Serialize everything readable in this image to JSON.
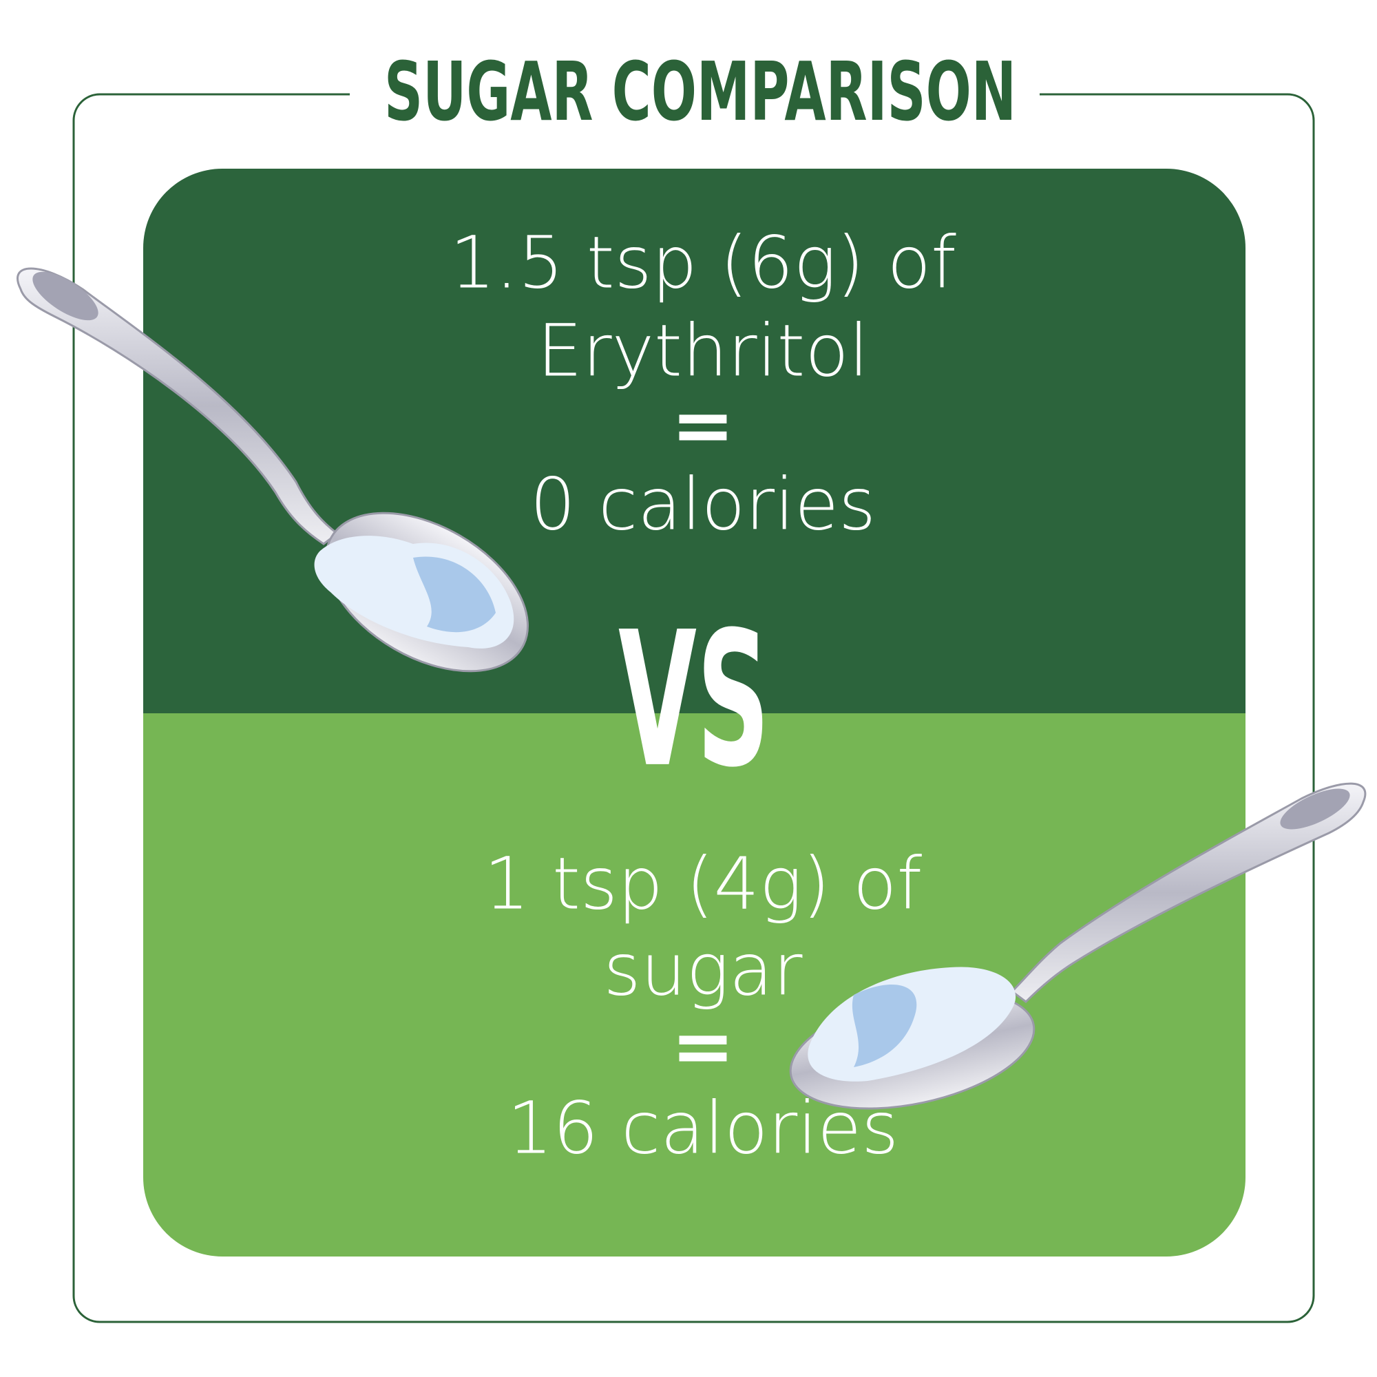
{
  "title": "SUGAR COMPARISON",
  "top": {
    "lines": [
      "1.5 tsp (6g) of",
      "Erythritol",
      "=",
      "0 calories"
    ]
  },
  "vs": "VS",
  "bottom": {
    "lines": [
      "1 tsp (4g) of",
      "sugar",
      "=",
      "16 calories"
    ]
  }
}
